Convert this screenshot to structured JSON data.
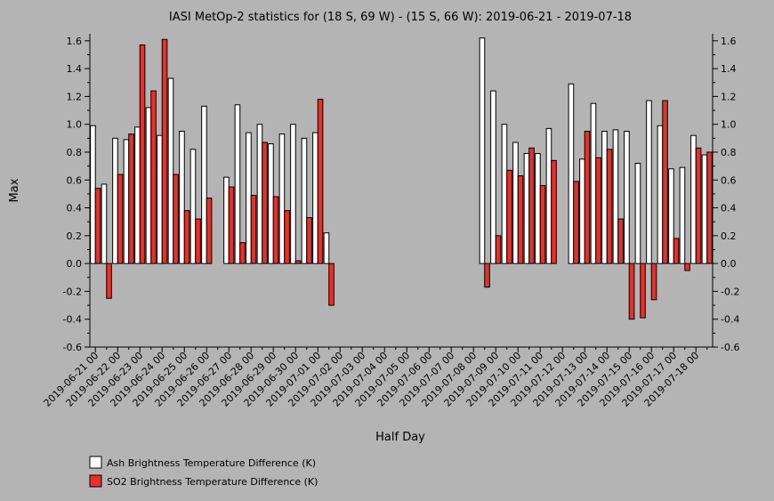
{
  "chart_data": {
    "type": "bar",
    "title": "IASI MetOp-2 statistics for (18 S, 69 W) - (15 S, 66 W): 2019-06-21 - 2019-07-18",
    "xlabel": "Half Day",
    "ylabel": "Max",
    "ylim": [
      -0.6,
      1.65
    ],
    "yticks": [
      -0.6,
      -0.4,
      -0.2,
      0.0,
      0.2,
      0.4,
      0.6,
      0.8,
      1.0,
      1.2,
      1.4,
      1.6
    ],
    "ytick_labels": [
      "-0.6",
      "-0.4",
      "-0.2",
      "0.0",
      "0.2",
      "0.4",
      "0.6",
      "0.8",
      "1.0",
      "1.2",
      "1.4",
      "1.6"
    ],
    "grid": false,
    "legend_position": "bottom-left",
    "categories": [
      "2019-06-21 00",
      "2019-06-21 12",
      "2019-06-22 00",
      "2019-06-22 12",
      "2019-06-23 00",
      "2019-06-23 12",
      "2019-06-24 00",
      "2019-06-24 12",
      "2019-06-25 00",
      "2019-06-25 12",
      "2019-06-26 00",
      "2019-06-26 12",
      "2019-06-27 00",
      "2019-06-27 12",
      "2019-06-28 00",
      "2019-06-28 12",
      "2019-06-29 00",
      "2019-06-29 12",
      "2019-06-30 00",
      "2019-06-30 12",
      "2019-07-01 00",
      "2019-07-01 12",
      "2019-07-02 00",
      "2019-07-02 12",
      "2019-07-03 00",
      "2019-07-03 12",
      "2019-07-04 00",
      "2019-07-04 12",
      "2019-07-05 00",
      "2019-07-05 12",
      "2019-07-06 00",
      "2019-07-06 12",
      "2019-07-07 00",
      "2019-07-07 12",
      "2019-07-08 00",
      "2019-07-08 12",
      "2019-07-09 00",
      "2019-07-09 12",
      "2019-07-10 00",
      "2019-07-10 12",
      "2019-07-11 00",
      "2019-07-11 12",
      "2019-07-12 00",
      "2019-07-12 12",
      "2019-07-13 00",
      "2019-07-13 12",
      "2019-07-14 00",
      "2019-07-14 12",
      "2019-07-15 00",
      "2019-07-15 12",
      "2019-07-16 00",
      "2019-07-16 12",
      "2019-07-17 00",
      "2019-07-17 12",
      "2019-07-18 00",
      "2019-07-18 12"
    ],
    "xtick_labels": [
      "2019-06-21 00",
      "2019-06-22 00",
      "2019-06-23 00",
      "2019-06-24 00",
      "2019-06-25 00",
      "2019-06-26 00",
      "2019-06-27 00",
      "2019-06-28 00",
      "2019-06-29 00",
      "2019-06-30 00",
      "2019-07-01 00",
      "2019-07-02 00",
      "2019-07-03 00",
      "2019-07-04 00",
      "2019-07-05 00",
      "2019-07-06 00",
      "2019-07-07 00",
      "2019-07-08 00",
      "2019-07-09 00",
      "2019-07-10 00",
      "2019-07-11 00",
      "2019-07-12 00",
      "2019-07-13 00",
      "2019-07-14 00",
      "2019-07-15 00",
      "2019-07-16 00",
      "2019-07-17 00",
      "2019-07-18 00"
    ],
    "series": [
      {
        "name": "Ash Brightness Temperature Difference (K)",
        "color": "#ffffff",
        "values": [
          0.99,
          0.57,
          0.9,
          0.89,
          0.98,
          1.12,
          0.92,
          1.33,
          0.95,
          0.82,
          1.13,
          null,
          0.62,
          1.14,
          0.94,
          1.0,
          0.86,
          0.93,
          1.0,
          0.9,
          0.94,
          0.22,
          null,
          null,
          null,
          null,
          null,
          null,
          null,
          null,
          null,
          null,
          null,
          null,
          null,
          1.62,
          1.24,
          1.0,
          0.87,
          0.79,
          0.79,
          0.97,
          null,
          1.29,
          0.75,
          1.15,
          0.95,
          0.96,
          0.95,
          0.72,
          1.17,
          0.99,
          0.68,
          0.69,
          0.92,
          0.78
        ]
      },
      {
        "name": "SO2 Brightness Temperature Difference (K)",
        "color": "#e8302a",
        "values": [
          0.54,
          -0.25,
          0.64,
          0.93,
          1.57,
          1.24,
          1.61,
          0.64,
          0.38,
          0.32,
          0.47,
          null,
          0.55,
          0.15,
          0.49,
          0.87,
          0.48,
          0.38,
          0.02,
          0.33,
          1.18,
          -0.3,
          null,
          null,
          null,
          null,
          null,
          null,
          null,
          null,
          null,
          null,
          null,
          null,
          null,
          -0.17,
          0.2,
          0.67,
          0.63,
          0.83,
          0.56,
          0.74,
          null,
          0.59,
          0.95,
          0.76,
          0.82,
          0.32,
          -0.4,
          -0.39,
          -0.26,
          1.17,
          0.18,
          -0.05,
          0.83,
          0.8
        ]
      }
    ]
  }
}
